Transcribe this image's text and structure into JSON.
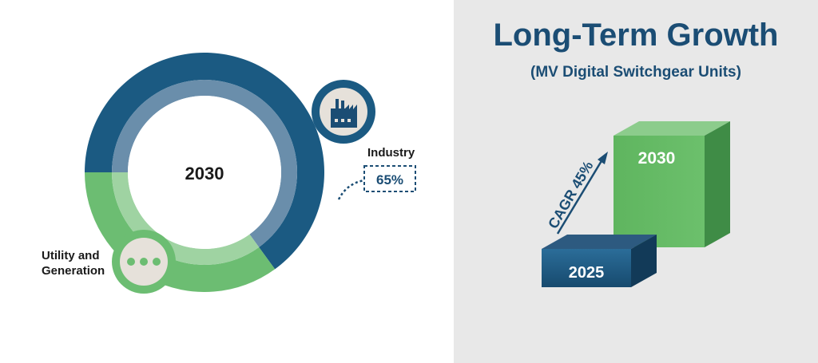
{
  "chart_data": [
    {
      "type": "donut",
      "center_label": "2030",
      "series": [
        {
          "name": "Industry",
          "value": 65,
          "value_label": "65%",
          "icon": "factory-icon",
          "color": "#1b5a82",
          "inner_color": "#6a8eab"
        },
        {
          "name": "Utility and Generation",
          "value": 35,
          "value_label": "",
          "icon": "ellipsis-icon",
          "color": "#6cbd72",
          "inner_color": "#9fd3a2"
        }
      ]
    },
    {
      "type": "bar",
      "title": "Long-Term Growth",
      "subtitle": "(MV Digital Switchgear Units)",
      "categories": [
        "2025",
        "2030"
      ],
      "annotation": "CAGR 45%",
      "colors": {
        "2025": "#1b5a82",
        "2030": "#5cb85c"
      }
    }
  ],
  "colors": {
    "navy": "#1b4d74",
    "green": "#5cb85c",
    "panel_gray": "#e8e8e8",
    "icon_fill": "#e6e1da"
  }
}
